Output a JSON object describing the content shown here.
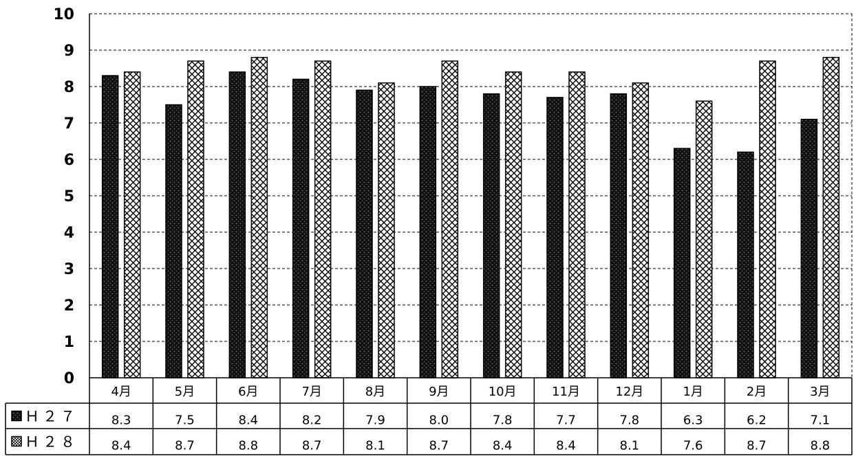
{
  "chart_data": {
    "type": "bar",
    "categories": [
      "4月",
      "5月",
      "6月",
      "7月",
      "8月",
      "9月",
      "10月",
      "11月",
      "12月",
      "1月",
      "2月",
      "3月"
    ],
    "series": [
      {
        "name": "Ｈ２７",
        "values": [
          8.3,
          7.5,
          8.4,
          8.2,
          7.9,
          8.0,
          7.8,
          7.7,
          7.8,
          6.3,
          6.2,
          7.1
        ],
        "fill": "dark-dotted",
        "color": "#111111"
      },
      {
        "name": "Ｈ２８",
        "values": [
          8.4,
          8.7,
          8.8,
          8.7,
          8.1,
          8.7,
          8.4,
          8.4,
          8.1,
          7.6,
          8.7,
          8.8
        ],
        "fill": "crosshatch",
        "color": "#000000"
      }
    ],
    "value_labels": [
      [
        "8.3",
        "7.5",
        "8.4",
        "8.2",
        "7.9",
        "8.0",
        "7.8",
        "7.7",
        "7.8",
        "6.3",
        "6.2",
        "7.1"
      ],
      [
        "8.4",
        "8.7",
        "8.8",
        "8.7",
        "8.1",
        "8.7",
        "8.4",
        "8.4",
        "8.1",
        "7.6",
        "8.7",
        "8.8"
      ]
    ],
    "title": "",
    "xlabel": "",
    "ylabel": "",
    "ylim": [
      0,
      10
    ],
    "yticks": [
      "0",
      "1",
      "2",
      "3",
      "4",
      "5",
      "6",
      "7",
      "8",
      "9",
      "10"
    ],
    "grid": "dashed-horizontal",
    "legend": "data-table-below"
  }
}
